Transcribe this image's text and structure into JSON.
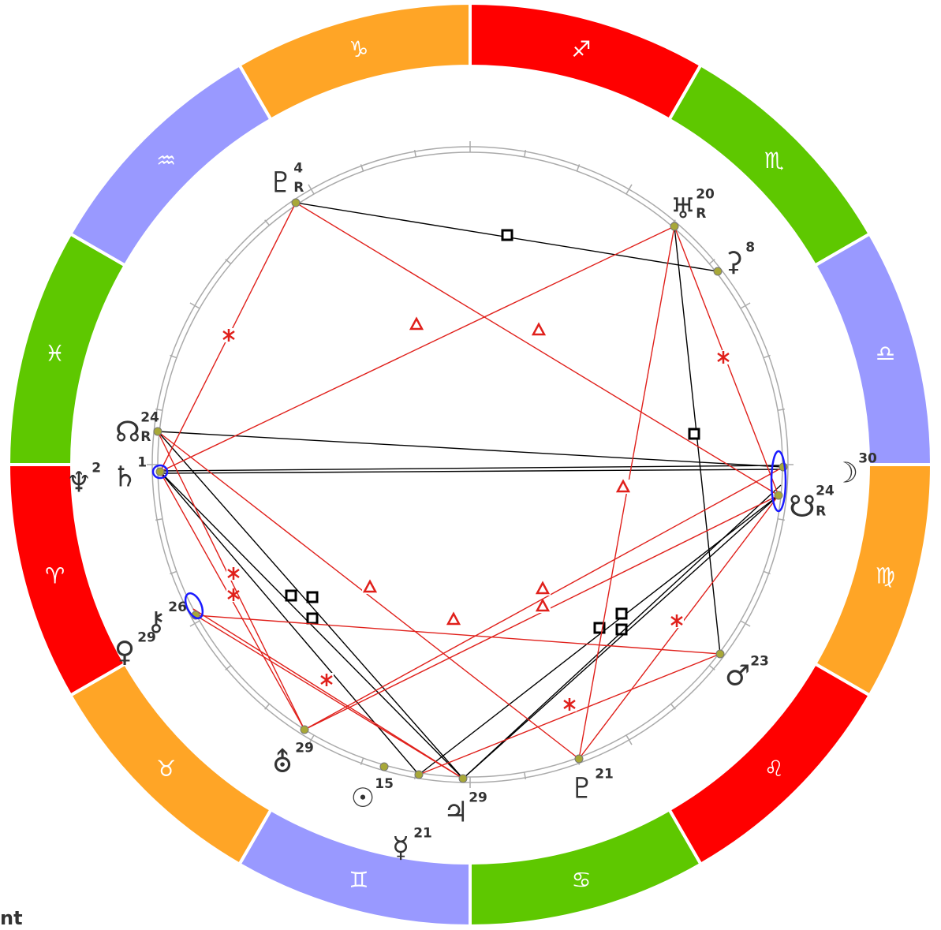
{
  "signs": [
    {
      "glyph": "♐",
      "color": "#ff0000"
    },
    {
      "glyph": "♏",
      "color": "#5ec800"
    },
    {
      "glyph": "♎",
      "color": "#9999ff"
    },
    {
      "glyph": "♍",
      "color": "#ffa526"
    },
    {
      "glyph": "♌",
      "color": "#ff0000"
    },
    {
      "glyph": "♋",
      "color": "#5ec800"
    },
    {
      "glyph": "♊",
      "color": "#9999ff"
    },
    {
      "glyph": "♉",
      "color": "#ffa526"
    },
    {
      "glyph": "♈",
      "color": "#ff0000"
    },
    {
      "glyph": "♓",
      "color": "#5ec800"
    },
    {
      "glyph": "♒",
      "color": "#9999ff"
    },
    {
      "glyph": "♑",
      "color": "#ffa526"
    }
  ],
  "planets": [
    {
      "glyph": "♇",
      "degree": "4",
      "retrograde": "R"
    },
    {
      "glyph": "♅",
      "degree": "20",
      "retrograde": "R"
    },
    {
      "glyph": "⚳",
      "degree": "8"
    },
    {
      "glyph": "☊",
      "degree": "24",
      "retrograde": "R"
    },
    {
      "glyph": "♄",
      "degree": "1"
    },
    {
      "glyph": "♆",
      "degree": "2"
    },
    {
      "glyph": "☽",
      "degree": "30"
    },
    {
      "glyph": "☋",
      "degree": "24",
      "retrograde": "R"
    },
    {
      "glyph": "⚷",
      "degree": "26"
    },
    {
      "glyph": "♀",
      "degree": "29"
    },
    {
      "glyph": "♂",
      "degree": "23"
    },
    {
      "glyph": "⛢",
      "degree": "29"
    },
    {
      "glyph": "☉",
      "degree": "15"
    },
    {
      "glyph": "♃",
      "degree": "29"
    },
    {
      "glyph": "♇",
      "degree": "21"
    },
    {
      "glyph": "☿",
      "degree": "21"
    }
  ],
  "footer": "nt"
}
